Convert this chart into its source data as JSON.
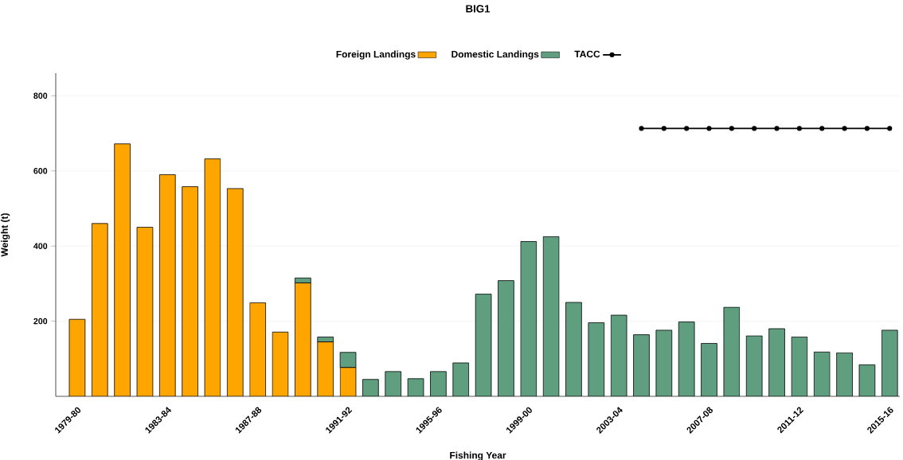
{
  "chart_data": {
    "type": "bar",
    "title": "BIG1",
    "xlabel": "Fishing Year",
    "ylabel": "Weight (t)",
    "stacked": true,
    "grid": "y",
    "legend": "top",
    "categories": [
      "1979-80",
      null,
      null,
      null,
      "1983-84",
      null,
      null,
      null,
      "1987-88",
      null,
      null,
      null,
      "1991-92",
      null,
      null,
      null,
      "1995-96",
      null,
      null,
      null,
      "1999-00",
      null,
      null,
      null,
      "2003-04",
      null,
      null,
      null,
      "2007-08",
      null,
      null,
      null,
      "2011-12",
      null,
      null,
      null,
      "2015-16"
    ],
    "ylim": [
      0,
      860
    ],
    "yticks": [
      200,
      400,
      600,
      800
    ],
    "series": [
      {
        "name": "Foreign Landings",
        "color": "#ffa500",
        "values": [
          205,
          460,
          672,
          450,
          590,
          558,
          632,
          553,
          249,
          171,
          302,
          145,
          77,
          null,
          null,
          null,
          null,
          null,
          null,
          null,
          null,
          null,
          null,
          null,
          null,
          null,
          null,
          null,
          null,
          null,
          null,
          null,
          null,
          null,
          null,
          null,
          null
        ]
      },
      {
        "name": "Domestic Landings",
        "color": "#5f9e7f",
        "values": [
          null,
          null,
          null,
          null,
          null,
          null,
          null,
          null,
          null,
          null,
          13,
          13,
          40,
          45,
          66,
          47,
          66,
          89,
          272,
          308,
          412,
          425,
          250,
          196,
          216,
          164,
          176,
          198,
          141,
          237,
          161,
          180,
          158,
          118,
          116,
          84,
          176
        ]
      },
      {
        "name": "TACC",
        "type": "line",
        "color": "#000000",
        "marker": "circle",
        "values": [
          null,
          null,
          null,
          null,
          null,
          null,
          null,
          null,
          null,
          null,
          null,
          null,
          null,
          null,
          null,
          null,
          null,
          null,
          null,
          null,
          null,
          null,
          null,
          null,
          null,
          713,
          713,
          713,
          713,
          713,
          713,
          713,
          713,
          713,
          713,
          713,
          713
        ]
      }
    ]
  }
}
